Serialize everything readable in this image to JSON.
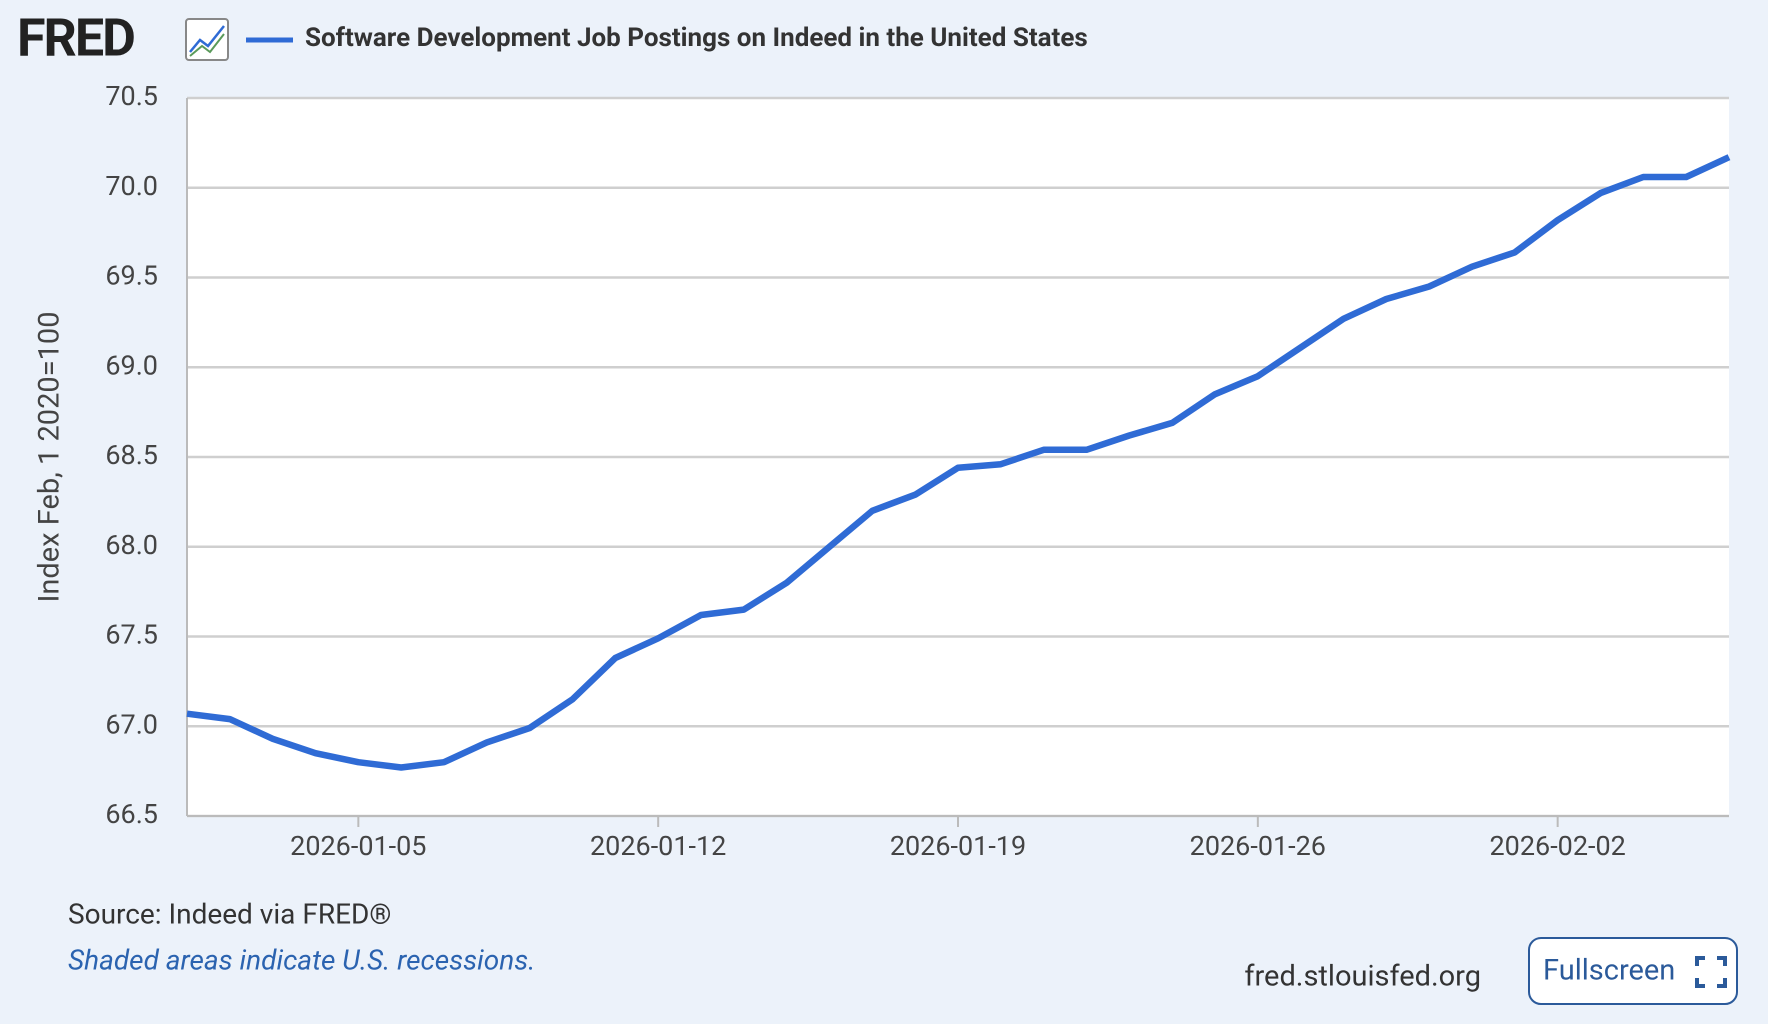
{
  "logo": "FRED",
  "chart_data": {
    "type": "line",
    "title": "Software Development Job Postings on Indeed in the United States",
    "y_label": "Index Feb, 1 2020=100",
    "x": [
      "2026-01-01",
      "2026-01-02",
      "2026-01-03",
      "2026-01-04",
      "2026-01-05",
      "2026-01-06",
      "2026-01-07",
      "2026-01-08",
      "2026-01-09",
      "2026-01-10",
      "2026-01-11",
      "2026-01-12",
      "2026-01-13",
      "2026-01-14",
      "2026-01-15",
      "2026-01-16",
      "2026-01-17",
      "2026-01-18",
      "2026-01-19",
      "2026-01-20",
      "2026-01-21",
      "2026-01-22",
      "2026-01-23",
      "2026-01-24",
      "2026-01-25",
      "2026-01-26",
      "2026-01-27",
      "2026-01-28",
      "2026-01-29",
      "2026-01-30",
      "2026-01-31",
      "2026-02-01",
      "2026-02-02",
      "2026-02-03",
      "2026-02-04",
      "2026-02-05",
      "2026-02-06"
    ],
    "series": [
      {
        "name": "Software Development Job Postings on Indeed in the United States",
        "color": "#2f6bd5",
        "values": [
          67.07,
          67.04,
          66.93,
          66.85,
          66.8,
          66.77,
          66.8,
          66.91,
          66.99,
          67.15,
          67.38,
          67.49,
          67.62,
          67.65,
          67.8,
          68.0,
          68.2,
          68.29,
          68.44,
          68.46,
          68.54,
          68.54,
          68.62,
          68.69,
          68.85,
          68.95,
          69.11,
          69.27,
          69.38,
          69.45,
          69.56,
          69.64,
          69.82,
          69.97,
          70.06,
          70.06,
          70.17
        ]
      }
    ],
    "xlim": [
      "2026-01-01",
      "2026-02-06"
    ],
    "xticks": [
      "2026-01-05",
      "2026-01-12",
      "2026-01-19",
      "2026-01-26",
      "2026-02-02"
    ],
    "ylim": [
      66.5,
      70.5
    ],
    "yticks": [
      66.5,
      {
        "value": 67,
        "label": "67.0"
      },
      67.5,
      {
        "value": 68,
        "label": "68.0"
      },
      68.5,
      {
        "value": 69,
        "label": "69.0"
      },
      69.5,
      {
        "value": 70,
        "label": "70.0"
      },
      70.5
    ],
    "grid": true,
    "source": "Source: Indeed via FRED®",
    "note": "Shaded areas indicate U.S. recessions.",
    "url": "fred.stlouisfed.org",
    "button": "Fullscreen"
  }
}
